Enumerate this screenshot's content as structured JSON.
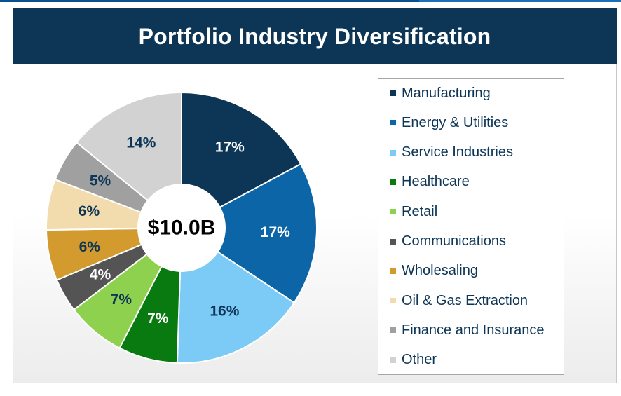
{
  "title": "Portfolio Industry Diversification",
  "chart_data": {
    "type": "pie",
    "title": "Portfolio Industry Diversification",
    "center_label": "$10.0B",
    "legend_position": "right",
    "slices": [
      {
        "name": "Manufacturing",
        "value": 17,
        "label": "17%",
        "color": "#0c3556",
        "label_color": "#ffffff"
      },
      {
        "name": "Energy & Utilities",
        "value": 17,
        "label": "17%",
        "color": "#0b65a7",
        "label_color": "#ffffff"
      },
      {
        "name": "Service Industries",
        "value": 16,
        "label": "16%",
        "color": "#7ccaf6",
        "label_color": "#0c3556"
      },
      {
        "name": "Healthcare",
        "value": 7,
        "label": "7%",
        "color": "#087a10",
        "label_color": "#ffffff"
      },
      {
        "name": "Retail",
        "value": 7,
        "label": "7%",
        "color": "#8dd14e",
        "label_color": "#0c3556"
      },
      {
        "name": "Communications",
        "value": 4,
        "label": "4%",
        "color": "#545454",
        "label_color": "#ffffff"
      },
      {
        "name": "Wholesaling",
        "value": 6,
        "label": "6%",
        "color": "#d39b2e",
        "label_color": "#0c3556"
      },
      {
        "name": "Oil & Gas Extraction",
        "value": 6,
        "label": "6%",
        "color": "#f2dcae",
        "label_color": "#0c3556"
      },
      {
        "name": "Finance and Insurance",
        "value": 5,
        "label": "5%",
        "color": "#a0a0a0",
        "label_color": "#0c3556"
      },
      {
        "name": "Other",
        "value": 14,
        "label": "14%",
        "color": "#d2d2d2",
        "label_color": "#0c3556"
      }
    ]
  }
}
